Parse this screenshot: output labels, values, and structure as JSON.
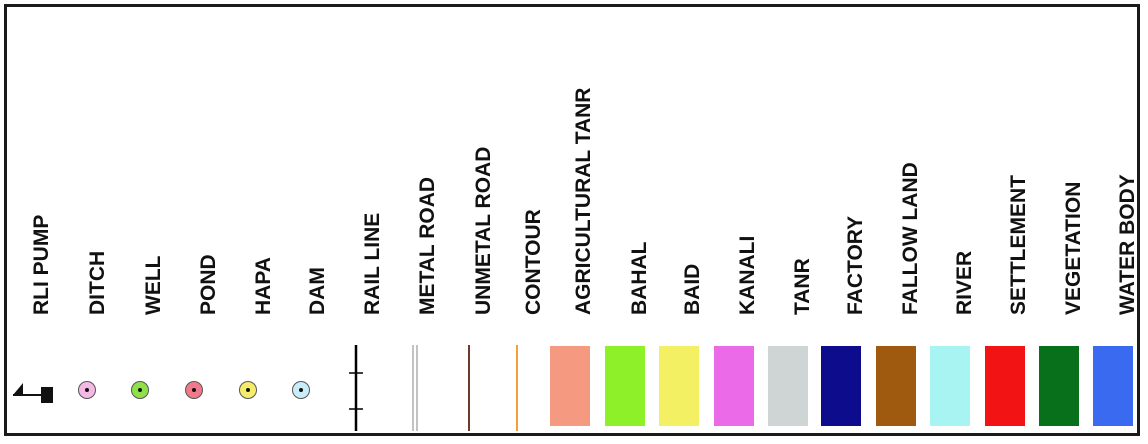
{
  "legend": {
    "items": [
      {
        "id": "rli-pump",
        "label": "RLI PUMP",
        "kind": "pump"
      },
      {
        "id": "ditch",
        "label": "DITCH",
        "kind": "point",
        "color": "#f4b8e4"
      },
      {
        "id": "well",
        "label": "WELL",
        "kind": "point",
        "color": "#8fe04a"
      },
      {
        "id": "pond",
        "label": "POND",
        "kind": "point",
        "color": "#f07a8c"
      },
      {
        "id": "hapa",
        "label": "HAPA",
        "kind": "point",
        "color": "#f4ec6a"
      },
      {
        "id": "dam",
        "label": "DAM",
        "kind": "point",
        "color": "#c8ecf8"
      },
      {
        "id": "rail-line",
        "label": "RAIL LINE",
        "kind": "rail",
        "color": "#000000"
      },
      {
        "id": "metal-road",
        "label": "METAL ROAD",
        "kind": "double-line",
        "color": "#9a9a9a"
      },
      {
        "id": "unmetal-road",
        "label": "UNMETAL ROAD",
        "kind": "line",
        "color": "#6b3a2a"
      },
      {
        "id": "contour",
        "label": "CONTOUR",
        "kind": "line",
        "color": "#f2a03a"
      },
      {
        "id": "agricultural-tanr",
        "label": "AGRICULTURAL TANR",
        "kind": "area",
        "color": "#f59a80"
      },
      {
        "id": "bahal",
        "label": "BAHAL",
        "kind": "area",
        "color": "#8ef028"
      },
      {
        "id": "baid",
        "label": "BAID",
        "kind": "area",
        "color": "#f4f064"
      },
      {
        "id": "kanali",
        "label": "KANALI",
        "kind": "area",
        "color": "#ea6ae8"
      },
      {
        "id": "tanr",
        "label": "TANR",
        "kind": "area",
        "color": "#cfd4d4"
      },
      {
        "id": "factory",
        "label": "FACTORY",
        "kind": "area",
        "color": "#0c0c8c"
      },
      {
        "id": "fallow-land",
        "label": "FALLOW LAND",
        "kind": "area",
        "color": "#a05a10"
      },
      {
        "id": "river",
        "label": "RIVER",
        "kind": "area",
        "color": "#a8f4f2"
      },
      {
        "id": "settlement",
        "label": "SETTLEMENT",
        "kind": "area",
        "color": "#f21414"
      },
      {
        "id": "vegetation",
        "label": "VEGETATION",
        "kind": "area",
        "color": "#08701a"
      },
      {
        "id": "water-body",
        "label": "WATER BODY",
        "kind": "area",
        "color": "#3a6af0"
      }
    ]
  }
}
